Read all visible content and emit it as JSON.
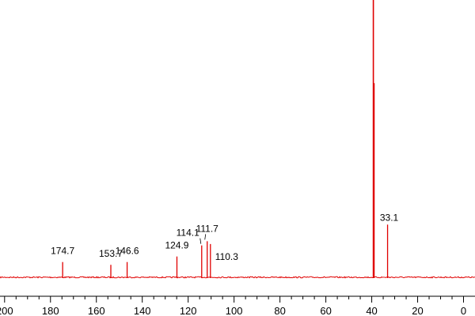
{
  "chart_data": {
    "type": "line",
    "title": "",
    "xlabel": "",
    "ylabel": "",
    "x_axis": {
      "reversed": true,
      "min": -5,
      "max": 202,
      "ticks": [
        200,
        180,
        160,
        140,
        120,
        100,
        80,
        60,
        40,
        20,
        0
      ],
      "tick_labels": [
        "200",
        "180",
        "160",
        "140",
        "120",
        "100",
        "80",
        "60",
        "40",
        "20",
        "0"
      ]
    },
    "grid": false,
    "color": "#e00000",
    "series": [
      {
        "peaks": [
          {
            "x": 174.7,
            "height": 0.055,
            "label": "174.7"
          },
          {
            "x": 153.7,
            "height": 0.045,
            "label": "153.7"
          },
          {
            "x": 146.6,
            "height": 0.055,
            "label": "146.6"
          },
          {
            "x": 124.9,
            "height": 0.075,
            "label": "124.9"
          },
          {
            "x": 114.1,
            "height": 0.115,
            "label": "114.1"
          },
          {
            "x": 111.7,
            "height": 0.13,
            "label": "111.7"
          },
          {
            "x": 110.3,
            "height": 0.12,
            "label": "110.3"
          },
          {
            "x": 39.3,
            "height": 1.0,
            "label": ""
          },
          {
            "x": 39.0,
            "height": 0.7,
            "label": ""
          },
          {
            "x": 33.1,
            "height": 0.19,
            "label": "33.1"
          }
        ]
      }
    ]
  }
}
